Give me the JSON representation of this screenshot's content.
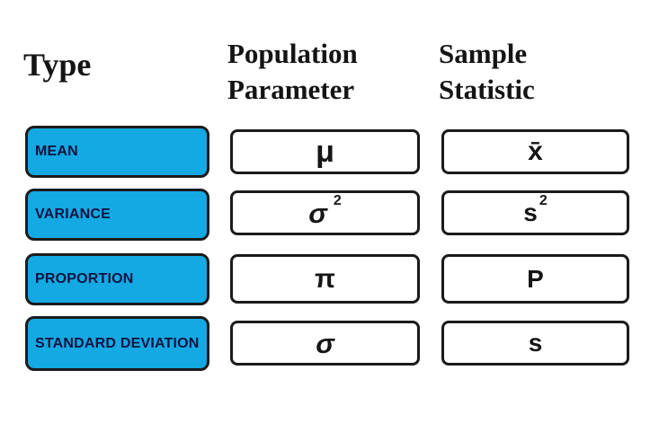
{
  "headers": {
    "type": "Type",
    "population": [
      "Population",
      "Parameter"
    ],
    "sample": [
      "Sample",
      "Statistic"
    ]
  },
  "rows": [
    {
      "type_label": "MEAN",
      "population_parameter": {
        "base": "μ",
        "sup": ""
      },
      "sample_statistic": {
        "base": "x̄",
        "sup": ""
      }
    },
    {
      "type_label": "VARIANCE",
      "population_parameter": {
        "base": "σ",
        "sup": "2"
      },
      "sample_statistic": {
        "base": "s",
        "sup": "2"
      }
    },
    {
      "type_label": "PROPORTION",
      "population_parameter": {
        "base": "π",
        "sup": ""
      },
      "sample_statistic": {
        "base": "P",
        "sup": ""
      }
    },
    {
      "type_label": "STANDARD DEVIATION",
      "population_parameter": {
        "base": "σ",
        "sup": ""
      },
      "sample_statistic": {
        "base": "s",
        "sup": ""
      }
    }
  ],
  "colors": {
    "accent_blue": "#14a9e2",
    "box_border": "#1b1b1b",
    "label_text": "#0e1340",
    "header_text": "#141414",
    "background": "#ffffff"
  }
}
